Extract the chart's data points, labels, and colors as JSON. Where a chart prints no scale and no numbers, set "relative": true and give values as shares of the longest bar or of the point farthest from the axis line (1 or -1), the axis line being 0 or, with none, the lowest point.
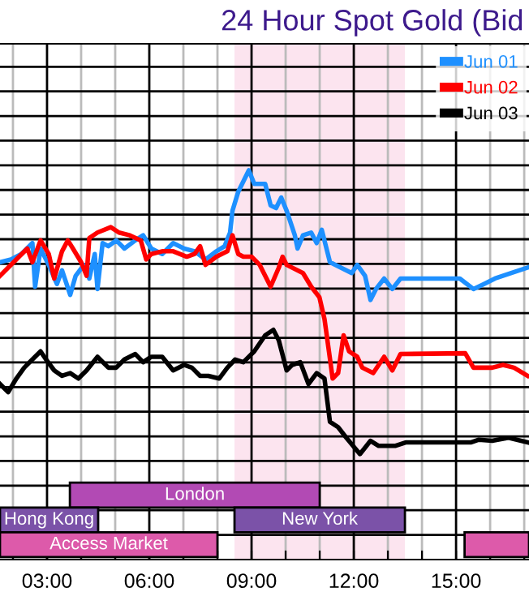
{
  "chart_data": {
    "type": "line",
    "title": "24 Hour Spot Gold (Bid",
    "relative": true,
    "grid": true,
    "legend": "top right",
    "marker": "none",
    "line_style": "solid",
    "xlim": [
      1.62,
      17.14
    ],
    "xticks": [
      {
        "value": 2,
        "label": null
      },
      {
        "value": 3,
        "label": "03:00"
      },
      {
        "value": 4,
        "label": null
      },
      {
        "value": 5,
        "label": null
      },
      {
        "value": 6,
        "label": "06:00"
      },
      {
        "value": 7,
        "label": null
      },
      {
        "value": 8,
        "label": null
      },
      {
        "value": 9,
        "label": "09:00"
      },
      {
        "value": 10,
        "label": null
      },
      {
        "value": 11,
        "label": null
      },
      {
        "value": 12,
        "label": "12:00"
      },
      {
        "value": 13,
        "label": null
      },
      {
        "value": 14,
        "label": null
      },
      {
        "value": 15,
        "label": "15:00"
      },
      {
        "value": 16,
        "label": null
      },
      {
        "value": 17,
        "label": null
      }
    ],
    "bands": [
      {
        "axis": "x",
        "from": 8.5,
        "to": 13.5,
        "color": "#fce4ef"
      },
      {
        "axis": "x",
        "from": 3.67,
        "to": 11.0,
        "label": "London",
        "color": "#b24ab4"
      },
      {
        "axis": "x",
        "from": 1.62,
        "to": 4.5,
        "label": "Hong Kong",
        "color": "#7b52a8"
      },
      {
        "axis": "x",
        "from": 8.5,
        "to": 13.5,
        "label": "New York",
        "color": "#7b52a8"
      },
      {
        "axis": "x",
        "from": 1.62,
        "to": 8.0,
        "label": "Access Market",
        "color": "#dd5aaa"
      },
      {
        "axis": "x",
        "from": 15.25,
        "to": 17.14,
        "label": null,
        "color": "#dd5aaa"
      }
    ],
    "series": [
      {
        "name": "Jun 01",
        "color": "#1e90ff",
        "x": [
          1.62,
          1.94,
          2.25,
          2.57,
          2.65,
          2.81,
          3.05,
          3.29,
          3.44,
          3.68,
          3.84,
          4.08,
          4.24,
          4.4,
          4.48,
          4.63,
          4.8,
          5.03,
          5.27,
          5.59,
          5.82,
          6.06,
          6.38,
          6.7,
          7.02,
          7.33,
          7.65,
          7.97,
          8.21,
          8.37,
          8.44,
          8.61,
          8.92,
          9.08,
          9.4,
          9.56,
          9.72,
          9.87,
          10.03,
          10.27,
          10.35,
          10.51,
          10.75,
          10.91,
          11.06,
          11.3,
          11.62,
          11.94,
          12.1,
          12.33,
          12.49,
          12.65,
          12.89,
          13.13,
          13.37,
          15.11,
          15.51,
          15.82,
          16.14,
          16.62,
          17.1
        ],
        "values": [
          0.764,
          0.771,
          0.785,
          0.813,
          0.701,
          0.799,
          0.757,
          0.708,
          0.743,
          0.68,
          0.729,
          0.757,
          0.722,
          0.785,
          0.695,
          0.813,
          0.805,
          0.82,
          0.799,
          0.82,
          0.833,
          0.799,
          0.785,
          0.813,
          0.799,
          0.792,
          0.771,
          0.792,
          0.805,
          0.84,
          0.896,
          0.945,
          1.0,
          0.965,
          0.965,
          0.91,
          0.903,
          0.93,
          0.896,
          0.833,
          0.799,
          0.833,
          0.84,
          0.813,
          0.847,
          0.764,
          0.75,
          0.736,
          0.757,
          0.729,
          0.667,
          0.695,
          0.722,
          0.695,
          0.722,
          0.722,
          0.695,
          0.708,
          0.722,
          0.736,
          0.75
        ]
      },
      {
        "name": "Jun 02",
        "color": "#ff0000",
        "x": [
          1.62,
          1.86,
          2.18,
          2.42,
          2.57,
          2.81,
          3.05,
          3.21,
          3.44,
          3.61,
          3.76,
          4.0,
          4.16,
          4.24,
          4.48,
          4.87,
          5.11,
          5.43,
          5.75,
          5.91,
          6.06,
          6.38,
          6.7,
          7.1,
          7.33,
          7.49,
          7.65,
          7.97,
          8.29,
          8.44,
          8.61,
          8.76,
          9.0,
          9.24,
          9.56,
          9.8,
          9.91,
          10.03,
          10.51,
          10.75,
          10.99,
          11.14,
          11.27,
          11.38,
          11.54,
          11.7,
          11.86,
          12.1,
          12.25,
          12.57,
          12.89,
          13.13,
          13.37,
          15.27,
          15.51,
          16.06,
          16.38,
          16.7,
          17.1
        ],
        "values": [
          0.729,
          0.75,
          0.778,
          0.799,
          0.764,
          0.82,
          0.785,
          0.722,
          0.792,
          0.82,
          0.799,
          0.764,
          0.729,
          0.826,
          0.84,
          0.854,
          0.84,
          0.833,
          0.82,
          0.771,
          0.785,
          0.792,
          0.792,
          0.778,
          0.785,
          0.805,
          0.757,
          0.778,
          0.792,
          0.833,
          0.785,
          0.778,
          0.778,
          0.757,
          0.701,
          0.75,
          0.778,
          0.757,
          0.736,
          0.701,
          0.674,
          0.618,
          0.535,
          0.465,
          0.479,
          0.576,
          0.535,
          0.521,
          0.493,
          0.479,
          0.521,
          0.486,
          0.528,
          0.53,
          0.493,
          0.493,
          0.5,
          0.493,
          0.472
        ]
      },
      {
        "name": "Jun 03",
        "color": "#000000",
        "x": [
          1.62,
          1.86,
          2.1,
          2.33,
          2.57,
          2.81,
          2.97,
          3.21,
          3.44,
          3.68,
          3.92,
          4.16,
          4.48,
          4.8,
          5.03,
          5.27,
          5.59,
          5.82,
          6.06,
          6.38,
          6.7,
          7.02,
          7.25,
          7.49,
          7.73,
          8.05,
          8.29,
          8.52,
          8.76,
          9.08,
          9.4,
          9.64,
          9.8,
          10.03,
          10.19,
          10.43,
          10.67,
          10.91,
          11.14,
          11.3,
          11.54,
          11.78,
          12.18,
          12.49,
          12.73,
          13.21,
          13.52,
          15.43,
          15.67,
          16.06,
          16.54,
          17.1
        ],
        "values": [
          0.451,
          0.43,
          0.465,
          0.493,
          0.514,
          0.535,
          0.514,
          0.486,
          0.472,
          0.479,
          0.465,
          0.486,
          0.521,
          0.493,
          0.493,
          0.514,
          0.528,
          0.507,
          0.521,
          0.521,
          0.486,
          0.5,
          0.493,
          0.472,
          0.472,
          0.465,
          0.493,
          0.514,
          0.507,
          0.535,
          0.576,
          0.59,
          0.563,
          0.486,
          0.5,
          0.507,
          0.451,
          0.479,
          0.465,
          0.354,
          0.34,
          0.313,
          0.271,
          0.305,
          0.292,
          0.292,
          0.301,
          0.301,
          0.308,
          0.305,
          0.313,
          0.301
        ]
      }
    ]
  }
}
